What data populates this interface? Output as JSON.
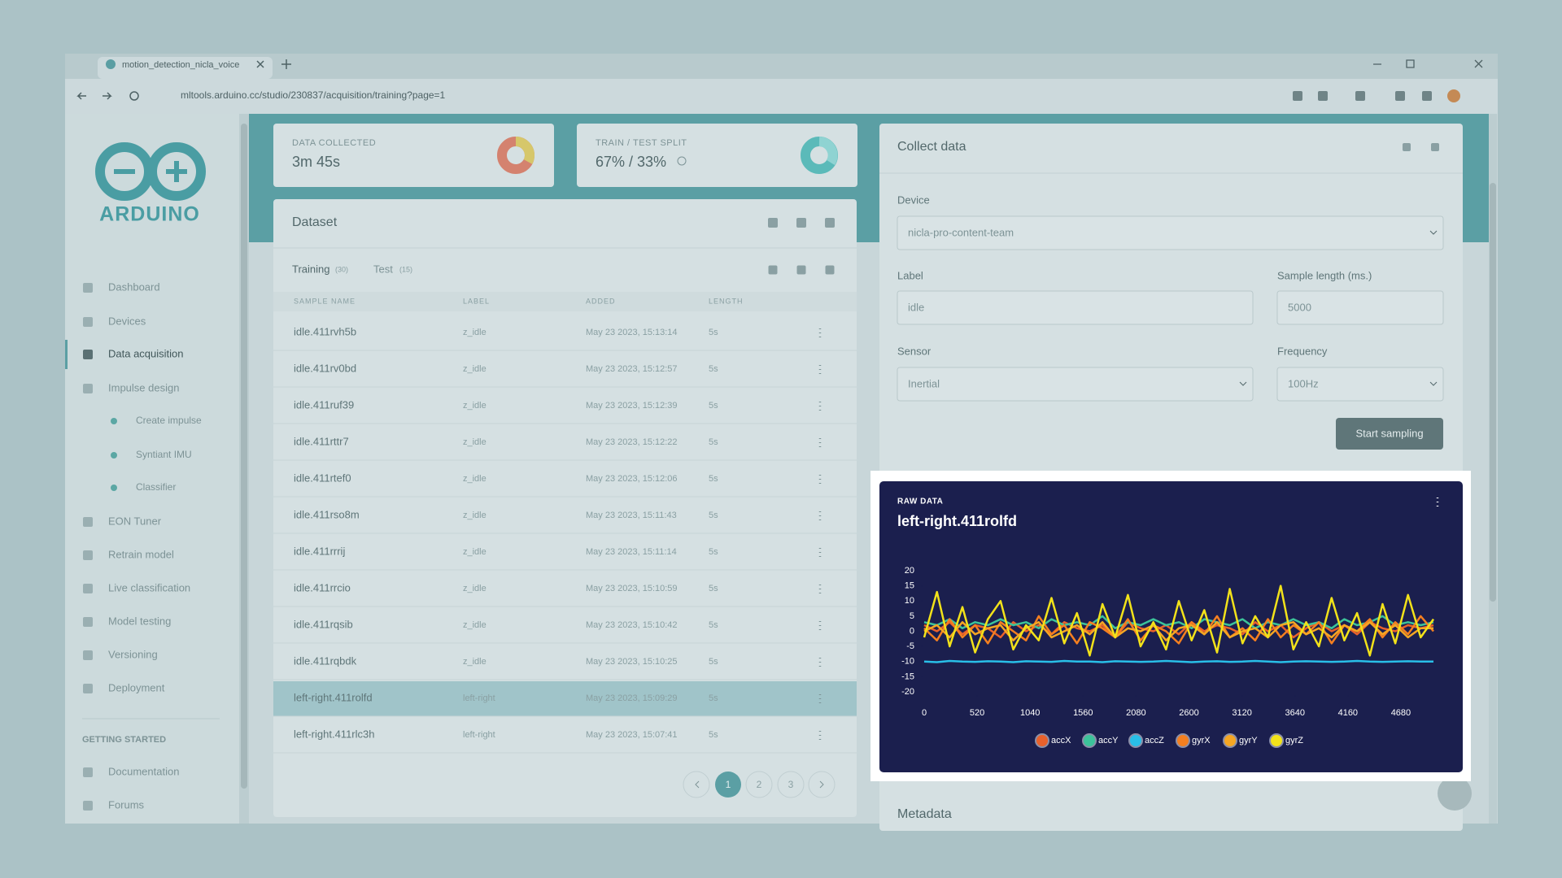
{
  "browser": {
    "tab_title": "motion_detection_nicla_voice",
    "url": "mltools.arduino.cc/studio/230837/acquisition/training?page=1"
  },
  "sidebar": {
    "brand": "ARDUINO",
    "nav": [
      "Dashboard",
      "Devices",
      "Data acquisition",
      "Impulse design",
      "Create impulse",
      "Syntiant IMU",
      "Classifier",
      "EON Tuner",
      "Retrain model",
      "Live classification",
      "Model testing",
      "Versioning",
      "Deployment"
    ],
    "section": "GETTING STARTED",
    "links": [
      "Documentation",
      "Forums"
    ]
  },
  "stats": [
    {
      "label": "DATA COLLECTED",
      "value": "3m 45s"
    },
    {
      "label": "TRAIN / TEST SPLIT",
      "value": "67% / 33%"
    }
  ],
  "dataset": {
    "title": "Dataset",
    "tabs": [
      {
        "label": "Training",
        "count": "(30)"
      },
      {
        "label": "Test",
        "count": "(15)"
      }
    ],
    "columns": [
      "SAMPLE NAME",
      "LABEL",
      "ADDED",
      "LENGTH"
    ],
    "rows": [
      [
        "idle.411rvh5b",
        "z_idle",
        "May 23 2023, 15:13:14",
        "5s"
      ],
      [
        "idle.411rv0bd",
        "z_idle",
        "May 23 2023, 15:12:57",
        "5s"
      ],
      [
        "idle.411ruf39",
        "z_idle",
        "May 23 2023, 15:12:39",
        "5s"
      ],
      [
        "idle.411rttr7",
        "z_idle",
        "May 23 2023, 15:12:22",
        "5s"
      ],
      [
        "idle.411rtef0",
        "z_idle",
        "May 23 2023, 15:12:06",
        "5s"
      ],
      [
        "idle.411rso8m",
        "z_idle",
        "May 23 2023, 15:11:43",
        "5s"
      ],
      [
        "idle.411rrrij",
        "z_idle",
        "May 23 2023, 15:11:14",
        "5s"
      ],
      [
        "idle.411rrcio",
        "z_idle",
        "May 23 2023, 15:10:59",
        "5s"
      ],
      [
        "idle.411rqsib",
        "z_idle",
        "May 23 2023, 15:10:42",
        "5s"
      ],
      [
        "idle.411rqbdk",
        "z_idle",
        "May 23 2023, 15:10:25",
        "5s"
      ],
      [
        "left-right.411rolfd",
        "left-right",
        "May 23 2023, 15:09:29",
        "5s"
      ],
      [
        "left-right.411rlc3h",
        "left-right",
        "May 23 2023, 15:07:41",
        "5s"
      ]
    ],
    "pages": [
      "1",
      "2",
      "3"
    ]
  },
  "collect": {
    "title": "Collect data",
    "device_label": "Device",
    "device": "nicla-pro-content-team",
    "label_label": "Label",
    "label": "idle",
    "length_label": "Sample length (ms.)",
    "length": "5000",
    "sensor_label": "Sensor",
    "sensor": "Inertial",
    "freq_label": "Frequency",
    "freq": "100Hz",
    "button": "Start sampling"
  },
  "metadata_title": "Metadata",
  "chart_data": {
    "type": "line",
    "subtitle": "RAW DATA",
    "title": "left-right.411rolfd",
    "x": [
      0,
      125,
      250,
      375,
      500,
      625,
      750,
      875,
      1000,
      1125,
      1250,
      1375,
      1500,
      1625,
      1750,
      1875,
      2000,
      2125,
      2250,
      2375,
      2500,
      2625,
      2750,
      2875,
      3000,
      3125,
      3250,
      3375,
      3500,
      3625,
      3750,
      3875,
      4000,
      4125,
      4250,
      4375,
      4500,
      4625,
      4750,
      4875,
      5000
    ],
    "xlim": [
      0,
      5000
    ],
    "xticks": [
      0,
      520,
      1040,
      1560,
      2080,
      2600,
      3120,
      3640,
      4160,
      4680
    ],
    "ylim": [
      -20,
      20
    ],
    "yticks": [
      20,
      15,
      10,
      5,
      0,
      -5,
      -10,
      -15,
      -20
    ],
    "series": [
      {
        "name": "accX",
        "color": "#e8612c",
        "values": [
          2,
          0,
          3,
          -1,
          2,
          1,
          -2,
          3,
          0,
          2,
          -1,
          3,
          1,
          0,
          2,
          -2,
          3,
          1,
          0,
          2,
          -1,
          3,
          0,
          2,
          1,
          -1,
          3,
          0,
          2,
          -2,
          1,
          3,
          0,
          2,
          -1,
          3,
          1,
          0,
          2,
          1,
          2
        ]
      },
      {
        "name": "accY",
        "color": "#3cc39a",
        "values": [
          3,
          2,
          4,
          1,
          3,
          2,
          4,
          2,
          3,
          1,
          4,
          2,
          3,
          2,
          5,
          1,
          3,
          2,
          4,
          2,
          3,
          1,
          4,
          3,
          2,
          4,
          1,
          3,
          2,
          4,
          2,
          3,
          1,
          4,
          2,
          3,
          5,
          2,
          3,
          2,
          3
        ]
      },
      {
        "name": "accZ",
        "color": "#29bfe8",
        "values": [
          -10,
          -10.2,
          -9.8,
          -10,
          -10.1,
          -9.9,
          -10,
          -10.2,
          -9.9,
          -10,
          -10.1,
          -9.8,
          -10,
          -10,
          -10.2,
          -9.9,
          -10,
          -10.1,
          -10,
          -9.8,
          -10,
          -10.2,
          -10,
          -9.9,
          -10.1,
          -10,
          -9.8,
          -10,
          -10.2,
          -10,
          -9.9,
          -10,
          -10.1,
          -10,
          -9.8,
          -10,
          -10.1,
          -10,
          -9.9,
          -10,
          -10
        ]
      },
      {
        "name": "gyrX",
        "color": "#f47f20",
        "values": [
          1,
          -3,
          4,
          -2,
          2,
          -4,
          3,
          0,
          -3,
          5,
          -1,
          2,
          -4,
          3,
          1,
          -2,
          4,
          -3,
          2,
          0,
          -4,
          3,
          -1,
          5,
          -2,
          1,
          -3,
          4,
          -2,
          2,
          -1,
          3,
          -4,
          2,
          0,
          4,
          -2,
          3,
          -1,
          5,
          0
        ]
      },
      {
        "name": "gyrY",
        "color": "#f5a623",
        "values": [
          0,
          2,
          -2,
          3,
          -1,
          1,
          2,
          -3,
          1,
          3,
          -2,
          0,
          2,
          -1,
          3,
          -2,
          1,
          0,
          2,
          -3,
          1,
          2,
          -1,
          3,
          -2,
          0,
          1,
          -2,
          2,
          3,
          -1,
          1,
          -2,
          2,
          0,
          3,
          -1,
          2,
          -2,
          1,
          1
        ]
      },
      {
        "name": "gyrZ",
        "color": "#f2e21a",
        "values": [
          -2,
          13,
          -5,
          8,
          -7,
          4,
          10,
          -6,
          2,
          -3,
          11,
          -4,
          6,
          -8,
          9,
          -2,
          12,
          -5,
          3,
          -6,
          10,
          -3,
          7,
          -7,
          14,
          -4,
          5,
          -2,
          15,
          -6,
          3,
          -5,
          11,
          -3,
          6,
          -8,
          9,
          -4,
          12,
          -2,
          4
        ]
      }
    ]
  }
}
